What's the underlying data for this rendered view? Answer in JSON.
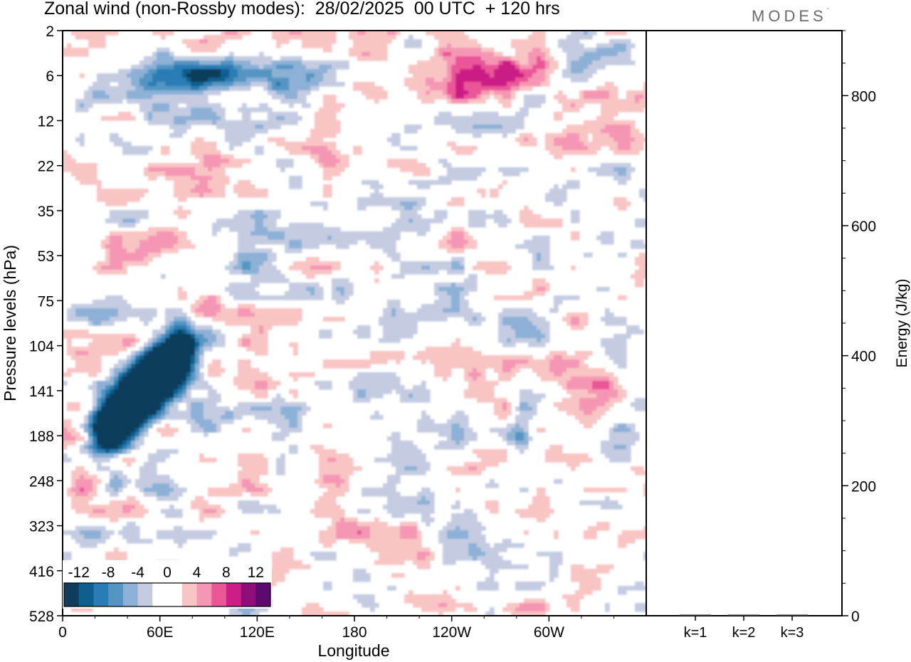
{
  "header": {
    "title": "Zonal wind (non-Rossby modes):  28/02/2025  00 UTC  + 120 hrs",
    "logo_text": "MODES",
    "logo_mark": "°"
  },
  "chart_data": [
    {
      "type": "heatmap",
      "title": "Zonal wind (non-Rossby modes):  28/02/2025  00 UTC  + 120 hrs",
      "xlabel": "Longitude",
      "ylabel": "Pressure levels (hPa)",
      "x_ticks": [
        "0",
        "60E",
        "120E",
        "180",
        "120W",
        "60W"
      ],
      "x_tick_degrees": [
        0,
        60,
        120,
        180,
        240,
        300
      ],
      "xlim": [
        0,
        360
      ],
      "y_ticks": [
        2,
        6,
        12,
        22,
        35,
        53,
        75,
        104,
        141,
        188,
        248,
        323,
        416,
        528
      ],
      "y_scale": "pressure levels (top = 2 hPa, bottom = 528 hPa)",
      "colorbar": {
        "labels": [
          "-12",
          "-8",
          "-4",
          "0",
          "4",
          "8",
          "12"
        ],
        "levels": [
          -14,
          -12,
          -10,
          -8,
          -6,
          -4,
          -2,
          0,
          2,
          4,
          6,
          8,
          10,
          12,
          14
        ],
        "colors": [
          "#0e3c5c",
          "#0f5f8e",
          "#2a7db4",
          "#5595c3",
          "#8db1d6",
          "#c5cce2",
          "#ffffff",
          "#ffffff",
          "#f9c4c4",
          "#f597b4",
          "#ea5797",
          "#cb1f86",
          "#8f0f7a",
          "#5c0a6e"
        ]
      },
      "features": [
        {
          "name": "negative anomaly band",
          "sign": "negative",
          "magnitude": 12,
          "lon_start": 25,
          "lon_end": 75,
          "from_level": 188,
          "to_level": 104
        },
        {
          "name": "upper negative cluster",
          "sign": "negative",
          "magnitude": 10,
          "lon_start": 20,
          "lon_end": 165,
          "level": 6
        },
        {
          "name": "upper positive cluster",
          "sign": "positive",
          "magnitude": 8,
          "lon_start": 200,
          "lon_end": 300,
          "level": 6
        },
        {
          "name": "positive region 60W",
          "sign": "positive",
          "magnitude": 8,
          "lon_start": 300,
          "lon_end": 345,
          "level": 141
        },
        {
          "name": "negative region 90W",
          "sign": "negative",
          "magnitude": 8,
          "lon_start": 275,
          "lon_end": 290,
          "level": 188
        }
      ]
    },
    {
      "type": "bar",
      "categories": [
        "k=1",
        "k=2",
        "k=3"
      ],
      "values": [
        0.5,
        0.4,
        0.3
      ],
      "ylabel": "Energy (J/kg)",
      "y_ticks": [
        0,
        200,
        400,
        600,
        800
      ],
      "ylim": [
        0,
        900
      ],
      "grid": false
    }
  ]
}
